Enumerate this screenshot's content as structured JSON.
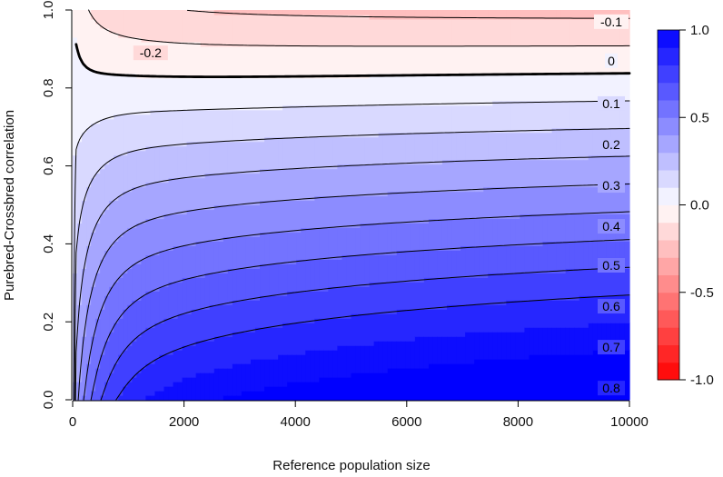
{
  "chart_data": {
    "type": "contour",
    "title": "",
    "xlabel": "Reference population size",
    "ylabel": "Purebred-Crossbred correlation",
    "xlim": [
      0,
      10000
    ],
    "ylim": [
      0,
      1
    ],
    "x_ticks": [
      "0",
      "2000",
      "4000",
      "6000",
      "8000",
      "10000"
    ],
    "y_ticks": [
      "0.0",
      "0.2",
      "0.4",
      "0.6",
      "0.8",
      "1.0"
    ],
    "x_tick_values": [
      0,
      2000,
      4000,
      6000,
      8000,
      10000
    ],
    "y_tick_values": [
      0,
      0.2,
      0.4,
      0.6,
      0.8,
      1.0
    ],
    "contour_labels": [
      "-0.2",
      "-0.1",
      "0",
      "0.1",
      "0.2",
      "0.3",
      "0.4",
      "0.5",
      "0.6",
      "0.7",
      "0.8"
    ],
    "contour_levels": [
      -0.2,
      -0.1,
      0,
      0.1,
      0.2,
      0.3,
      0.4,
      0.5,
      0.6,
      0.7,
      0.8
    ],
    "contour_label_y_at_right_edge": [
      null,
      0.97,
      0.87,
      0.76,
      0.655,
      0.55,
      0.445,
      0.345,
      0.24,
      0.135,
      0.03
    ],
    "contour_label_y_inside": {
      "-0.2": 0.89
    },
    "colorbar": {
      "range": [
        -1.0,
        1.0
      ],
      "ticks": [
        "1.0",
        "0.5",
        "0.0",
        "-0.5",
        "-1.0"
      ],
      "tick_values": [
        1.0,
        0.5,
        0.0,
        -0.5,
        -1.0
      ],
      "low_color": "#ff0000",
      "mid_color": "#ffffff",
      "high_color": "#0000ff"
    }
  }
}
